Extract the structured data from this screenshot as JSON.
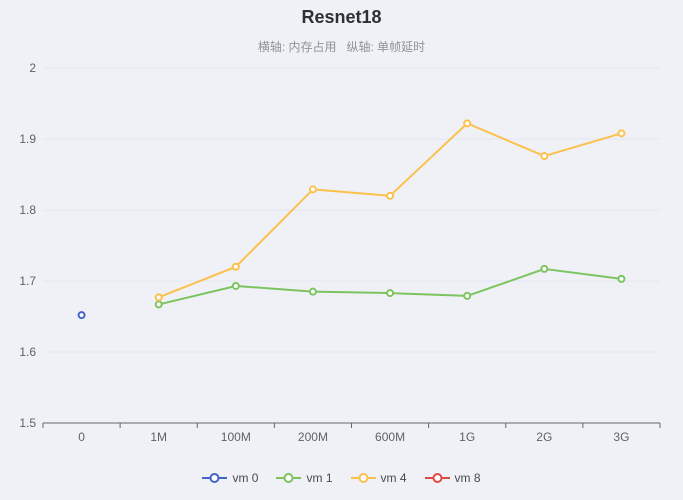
{
  "page": {
    "background_color": "#f0f1f6"
  },
  "chart_data": {
    "type": "line",
    "title": "Resnet18",
    "subtitle": "横轴: 内存占用   纵轴: 单帧延时",
    "categories": [
      "0",
      "1M",
      "100M",
      "200M",
      "600M",
      "1G",
      "2G",
      "3G"
    ],
    "series": [
      {
        "name": "vm 0",
        "color": "#4263c8",
        "values": [
          1.652,
          null,
          null,
          null,
          null,
          null,
          null,
          null
        ]
      },
      {
        "name": "vm 1",
        "color": "#7cc45f",
        "values": [
          null,
          1.667,
          1.693,
          1.685,
          1.683,
          1.679,
          1.717,
          1.703
        ]
      },
      {
        "name": "vm 4",
        "color": "#fbc14c",
        "values": [
          null,
          1.677,
          1.72,
          1.829,
          1.82,
          1.922,
          1.876,
          1.908
        ]
      },
      {
        "name": "vm 8",
        "color": "#e04a41",
        "values": [
          null,
          null,
          null,
          null,
          null,
          null,
          null,
          null
        ]
      }
    ],
    "ylim": [
      1.5,
      2
    ],
    "yticks": [
      1.5,
      1.6,
      1.7,
      1.8,
      1.9,
      2
    ],
    "ytick_labels": [
      "1.5",
      "1.6",
      "1.7",
      "1.8",
      "1.9",
      "2"
    ],
    "grid": true,
    "legend_position": "bottom",
    "grid_color": "#e2e7f1",
    "axis_color": "#5f6670",
    "marker_fill": "#ffffff"
  }
}
